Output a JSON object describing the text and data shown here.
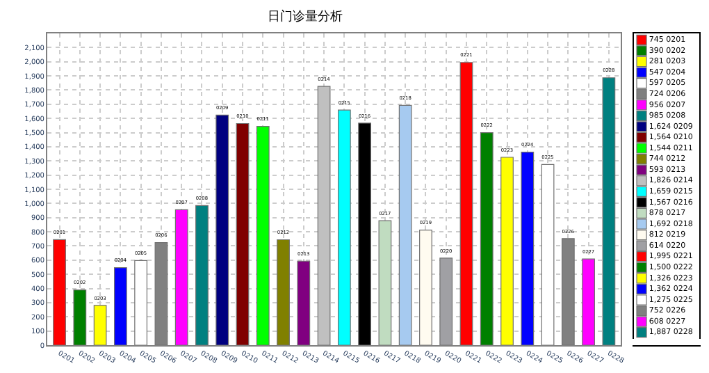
{
  "chart_data": {
    "type": "bar",
    "title": "日门诊量分析",
    "categories": [
      "0201",
      "0202",
      "0203",
      "0204",
      "0205",
      "0206",
      "0207",
      "0208",
      "0209",
      "0210",
      "0211",
      "0212",
      "0213",
      "0214",
      "0215",
      "0216",
      "0217",
      "0218",
      "0219",
      "0220",
      "0221",
      "0222",
      "0223",
      "0224",
      "0225",
      "0226",
      "0227",
      "0228"
    ],
    "series": [
      {
        "name": "745 0201",
        "color": "#ff0000",
        "values": [
          745,
          null,
          null,
          null,
          null,
          null,
          null,
          null,
          null,
          null,
          null,
          null,
          null,
          null,
          null,
          null,
          null,
          null,
          null,
          null,
          null,
          null,
          null,
          null,
          null,
          null,
          null,
          null
        ]
      },
      {
        "name": "390 0202",
        "color": "#008000",
        "values": [
          null,
          390,
          null,
          null,
          null,
          null,
          null,
          null,
          null,
          null,
          null,
          null,
          null,
          null,
          null,
          null,
          null,
          null,
          null,
          null,
          null,
          null,
          null,
          null,
          null,
          null,
          null,
          null
        ]
      },
      {
        "name": "281 0203",
        "color": "#ffff00",
        "values": [
          null,
          null,
          281,
          null,
          null,
          null,
          null,
          null,
          null,
          null,
          null,
          null,
          null,
          null,
          null,
          null,
          null,
          null,
          null,
          null,
          null,
          null,
          null,
          null,
          null,
          null,
          null,
          null
        ]
      },
      {
        "name": "547 0204",
        "color": "#0000ff",
        "values": [
          null,
          null,
          null,
          547,
          null,
          null,
          null,
          null,
          null,
          null,
          null,
          null,
          null,
          null,
          null,
          null,
          null,
          null,
          null,
          null,
          null,
          null,
          null,
          null,
          null,
          null,
          null,
          null
        ]
      },
      {
        "name": "597 0205",
        "color": "#ffffff",
        "values": [
          null,
          null,
          null,
          null,
          597,
          null,
          null,
          null,
          null,
          null,
          null,
          null,
          null,
          null,
          null,
          null,
          null,
          null,
          null,
          null,
          null,
          null,
          null,
          null,
          null,
          null,
          null,
          null
        ]
      },
      {
        "name": "724 0206",
        "color": "#808080",
        "values": [
          null,
          null,
          null,
          null,
          null,
          724,
          null,
          null,
          null,
          null,
          null,
          null,
          null,
          null,
          null,
          null,
          null,
          null,
          null,
          null,
          null,
          null,
          null,
          null,
          null,
          null,
          null,
          null
        ]
      },
      {
        "name": "956 0207",
        "color": "#ff00ff",
        "values": [
          null,
          null,
          null,
          null,
          null,
          null,
          956,
          null,
          null,
          null,
          null,
          null,
          null,
          null,
          null,
          null,
          null,
          null,
          null,
          null,
          null,
          null,
          null,
          null,
          null,
          null,
          null,
          null
        ]
      },
      {
        "name": "985 0208",
        "color": "#008080",
        "values": [
          null,
          null,
          null,
          null,
          null,
          null,
          null,
          985,
          null,
          null,
          null,
          null,
          null,
          null,
          null,
          null,
          null,
          null,
          null,
          null,
          null,
          null,
          null,
          null,
          null,
          null,
          null,
          null
        ]
      },
      {
        "name": "1,624 0209",
        "color": "#000080",
        "values": [
          null,
          null,
          null,
          null,
          null,
          null,
          null,
          null,
          1624,
          null,
          null,
          null,
          null,
          null,
          null,
          null,
          null,
          null,
          null,
          null,
          null,
          null,
          null,
          null,
          null,
          null,
          null,
          null
        ]
      },
      {
        "name": "1,564 0210",
        "color": "#800000",
        "values": [
          null,
          null,
          null,
          null,
          null,
          null,
          null,
          null,
          null,
          1564,
          null,
          null,
          null,
          null,
          null,
          null,
          null,
          null,
          null,
          null,
          null,
          null,
          null,
          null,
          null,
          null,
          null,
          null
        ]
      },
      {
        "name": "1,544 0211",
        "color": "#00ff00",
        "values": [
          null,
          null,
          null,
          null,
          null,
          null,
          null,
          null,
          null,
          null,
          1544,
          null,
          null,
          null,
          null,
          null,
          null,
          null,
          null,
          null,
          null,
          null,
          null,
          null,
          null,
          null,
          null,
          null
        ]
      },
      {
        "name": "744 0212",
        "color": "#808000",
        "values": [
          null,
          null,
          null,
          null,
          null,
          null,
          null,
          null,
          null,
          null,
          null,
          744,
          null,
          null,
          null,
          null,
          null,
          null,
          null,
          null,
          null,
          null,
          null,
          null,
          null,
          null,
          null,
          null
        ]
      },
      {
        "name": "593 0213",
        "color": "#800080",
        "values": [
          null,
          null,
          null,
          null,
          null,
          null,
          null,
          null,
          null,
          null,
          null,
          null,
          593,
          null,
          null,
          null,
          null,
          null,
          null,
          null,
          null,
          null,
          null,
          null,
          null,
          null,
          null,
          null
        ]
      },
      {
        "name": "1,826 0214",
        "color": "#c0c0c0",
        "values": [
          null,
          null,
          null,
          null,
          null,
          null,
          null,
          null,
          null,
          null,
          null,
          null,
          null,
          1826,
          null,
          null,
          null,
          null,
          null,
          null,
          null,
          null,
          null,
          null,
          null,
          null,
          null,
          null
        ]
      },
      {
        "name": "1,659 0215",
        "color": "#00ffff",
        "values": [
          null,
          null,
          null,
          null,
          null,
          null,
          null,
          null,
          null,
          null,
          null,
          null,
          null,
          null,
          1659,
          null,
          null,
          null,
          null,
          null,
          null,
          null,
          null,
          null,
          null,
          null,
          null,
          null
        ]
      },
      {
        "name": "1,567 0216",
        "color": "#000000",
        "values": [
          null,
          null,
          null,
          null,
          null,
          null,
          null,
          null,
          null,
          null,
          null,
          null,
          null,
          null,
          null,
          1567,
          null,
          null,
          null,
          null,
          null,
          null,
          null,
          null,
          null,
          null,
          null,
          null
        ]
      },
      {
        "name": "878 0217",
        "color": "#c0dcc0",
        "values": [
          null,
          null,
          null,
          null,
          null,
          null,
          null,
          null,
          null,
          null,
          null,
          null,
          null,
          null,
          null,
          null,
          878,
          null,
          null,
          null,
          null,
          null,
          null,
          null,
          null,
          null,
          null,
          null
        ]
      },
      {
        "name": "1,692 0218",
        "color": "#a6caf0",
        "values": [
          null,
          null,
          null,
          null,
          null,
          null,
          null,
          null,
          null,
          null,
          null,
          null,
          null,
          null,
          null,
          null,
          null,
          1692,
          null,
          null,
          null,
          null,
          null,
          null,
          null,
          null,
          null,
          null
        ]
      },
      {
        "name": "812 0219",
        "color": "#fffbf0",
        "values": [
          null,
          null,
          null,
          null,
          null,
          null,
          null,
          null,
          null,
          null,
          null,
          null,
          null,
          null,
          null,
          null,
          null,
          null,
          812,
          null,
          null,
          null,
          null,
          null,
          null,
          null,
          null,
          null
        ]
      },
      {
        "name": "614 0220",
        "color": "#a0a0a4",
        "values": [
          null,
          null,
          null,
          null,
          null,
          null,
          null,
          null,
          null,
          null,
          null,
          null,
          null,
          null,
          null,
          null,
          null,
          null,
          null,
          614,
          null,
          null,
          null,
          null,
          null,
          null,
          null,
          null
        ]
      },
      {
        "name": "1,995 0221",
        "color": "#ff0000",
        "values": [
          null,
          null,
          null,
          null,
          null,
          null,
          null,
          null,
          null,
          null,
          null,
          null,
          null,
          null,
          null,
          null,
          null,
          null,
          null,
          null,
          1995,
          null,
          null,
          null,
          null,
          null,
          null,
          null
        ]
      },
      {
        "name": "1,500 0222",
        "color": "#008000",
        "values": [
          null,
          null,
          null,
          null,
          null,
          null,
          null,
          null,
          null,
          null,
          null,
          null,
          null,
          null,
          null,
          null,
          null,
          null,
          null,
          null,
          null,
          1500,
          null,
          null,
          null,
          null,
          null,
          null
        ]
      },
      {
        "name": "1,326 0223",
        "color": "#ffff00",
        "values": [
          null,
          null,
          null,
          null,
          null,
          null,
          null,
          null,
          null,
          null,
          null,
          null,
          null,
          null,
          null,
          null,
          null,
          null,
          null,
          null,
          null,
          null,
          1326,
          null,
          null,
          null,
          null,
          null
        ]
      },
      {
        "name": "1,362 0224",
        "color": "#0000ff",
        "values": [
          null,
          null,
          null,
          null,
          null,
          null,
          null,
          null,
          null,
          null,
          null,
          null,
          null,
          null,
          null,
          null,
          null,
          null,
          null,
          null,
          null,
          null,
          null,
          1362,
          null,
          null,
          null,
          null
        ]
      },
      {
        "name": "1,275 0225",
        "color": "#ffffff",
        "values": [
          null,
          null,
          null,
          null,
          null,
          null,
          null,
          null,
          null,
          null,
          null,
          null,
          null,
          null,
          null,
          null,
          null,
          null,
          null,
          null,
          null,
          null,
          null,
          null,
          1275,
          null,
          null,
          null
        ]
      },
      {
        "name": "752 0226",
        "color": "#808080",
        "values": [
          null,
          null,
          null,
          null,
          null,
          null,
          null,
          null,
          null,
          null,
          null,
          null,
          null,
          null,
          null,
          null,
          null,
          null,
          null,
          null,
          null,
          null,
          null,
          null,
          null,
          752,
          null,
          null
        ]
      },
      {
        "name": "608 0227",
        "color": "#ff00ff",
        "values": [
          null,
          null,
          null,
          null,
          null,
          null,
          null,
          null,
          null,
          null,
          null,
          null,
          null,
          null,
          null,
          null,
          null,
          null,
          null,
          null,
          null,
          null,
          null,
          null,
          null,
          null,
          608,
          null
        ]
      },
      {
        "name": "1,887 0228",
        "color": "#008080",
        "values": [
          null,
          null,
          null,
          null,
          null,
          null,
          null,
          null,
          null,
          null,
          null,
          null,
          null,
          null,
          null,
          null,
          null,
          null,
          null,
          null,
          null,
          null,
          null,
          null,
          null,
          null,
          null,
          1887
        ]
      }
    ],
    "ylim": [
      0,
      2200
    ],
    "yticks": [
      0,
      100,
      200,
      300,
      400,
      500,
      600,
      700,
      800,
      900,
      {
        "value": 1000,
        "label": "1,000"
      },
      {
        "value": 1100,
        "label": "1,100"
      },
      {
        "value": 1200,
        "label": "1,200"
      },
      {
        "value": 1300,
        "label": "1,300"
      },
      {
        "value": 1400,
        "label": "1,400"
      },
      {
        "value": 1500,
        "label": "1,500"
      },
      {
        "value": 1600,
        "label": "1,600"
      },
      {
        "value": 1700,
        "label": "1,700"
      },
      {
        "value": 1800,
        "label": "1,800"
      },
      {
        "value": 1900,
        "label": "1,900"
      },
      {
        "value": 2000,
        "label": "2,000"
      },
      {
        "value": 2100,
        "label": "2,100"
      }
    ],
    "grid": true,
    "legend": "right"
  }
}
